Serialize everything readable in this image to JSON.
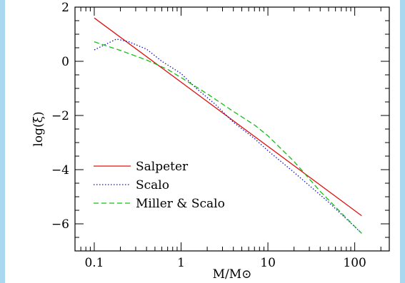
{
  "chart_data": {
    "type": "line",
    "xlabel": "M/M⊙",
    "ylabel": "log(ξ)",
    "x_scale": "log",
    "xlim": [
      0.06,
      250
    ],
    "ylim": [
      -7,
      2
    ],
    "x_ticks": [
      {
        "value": 0.1,
        "label": "0.1"
      },
      {
        "value": 1,
        "label": "1"
      },
      {
        "value": 10,
        "label": "10"
      },
      {
        "value": 100,
        "label": "100"
      }
    ],
    "y_ticks": [
      {
        "value": 2,
        "label": "2"
      },
      {
        "value": 0,
        "label": "0"
      },
      {
        "value": -2,
        "label": "−2"
      },
      {
        "value": -4,
        "label": "−4"
      },
      {
        "value": -6,
        "label": "−6"
      }
    ],
    "grid": false,
    "legend_position": "lower-left",
    "series": [
      {
        "name": "Salpeter",
        "color": "#e01010",
        "dash": "solid",
        "points": [
          [
            0.1,
            1.6
          ],
          [
            120,
            -5.7
          ]
        ]
      },
      {
        "name": "Scalo",
        "color": "#1010d0",
        "dash": "dotted",
        "points": [
          [
            0.1,
            0.42
          ],
          [
            0.18,
            0.82
          ],
          [
            0.25,
            0.72
          ],
          [
            0.4,
            0.45
          ],
          [
            0.6,
            0.0
          ],
          [
            1.0,
            -0.45
          ],
          [
            1.5,
            -1.0
          ],
          [
            2.5,
            -1.6
          ],
          [
            4.0,
            -2.25
          ],
          [
            7.0,
            -2.85
          ],
          [
            10.0,
            -3.3
          ],
          [
            20.0,
            -4.1
          ],
          [
            50.0,
            -5.2
          ],
          [
            120.0,
            -6.35
          ]
        ]
      },
      {
        "name": "Miller & Scalo",
        "color": "#10c010",
        "dash": "dashed",
        "points": [
          [
            0.1,
            0.72
          ],
          [
            0.2,
            0.4
          ],
          [
            0.4,
            0.05
          ],
          [
            0.7,
            -0.3
          ],
          [
            1.0,
            -0.6
          ],
          [
            2.0,
            -1.2
          ],
          [
            4.0,
            -1.85
          ],
          [
            7.0,
            -2.35
          ],
          [
            10.0,
            -2.75
          ],
          [
            20.0,
            -3.7
          ],
          [
            40.0,
            -4.8
          ],
          [
            70.0,
            -5.6
          ],
          [
            120.0,
            -6.35
          ]
        ]
      }
    ]
  }
}
